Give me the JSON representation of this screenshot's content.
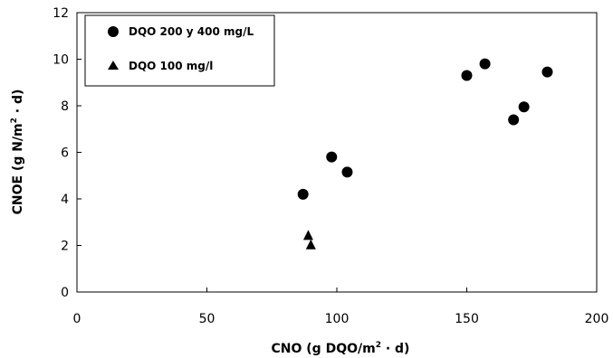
{
  "chart_data": {
    "type": "scatter",
    "xlim": [
      0,
      200
    ],
    "ylim": [
      0,
      12
    ],
    "x_ticks": [
      0,
      50,
      100,
      150,
      200
    ],
    "y_ticks": [
      0,
      2,
      4,
      6,
      8,
      10,
      12
    ],
    "xlabel": "CNO (g DQO/m",
    "xlabel_sup": "2",
    "xlabel_tail": " · d)",
    "ylabel": "CNOE (g N/m",
    "ylabel_sup": "2",
    "ylabel_tail": " · d)",
    "grid": false,
    "legend_position": "top-left",
    "series": [
      {
        "name": "DQO 200 y 400 mg/L",
        "marker": "circle",
        "color": "#000000",
        "points": [
          [
            87,
            4.2
          ],
          [
            98,
            5.8
          ],
          [
            104,
            5.15
          ],
          [
            150,
            9.3
          ],
          [
            157,
            9.8
          ],
          [
            168,
            7.4
          ],
          [
            172,
            7.95
          ],
          [
            181,
            9.45
          ]
        ]
      },
      {
        "name": "DQO 100 mg/l",
        "marker": "triangle",
        "color": "#000000",
        "points": [
          [
            89,
            2.45
          ],
          [
            90,
            2.05
          ]
        ]
      }
    ]
  }
}
